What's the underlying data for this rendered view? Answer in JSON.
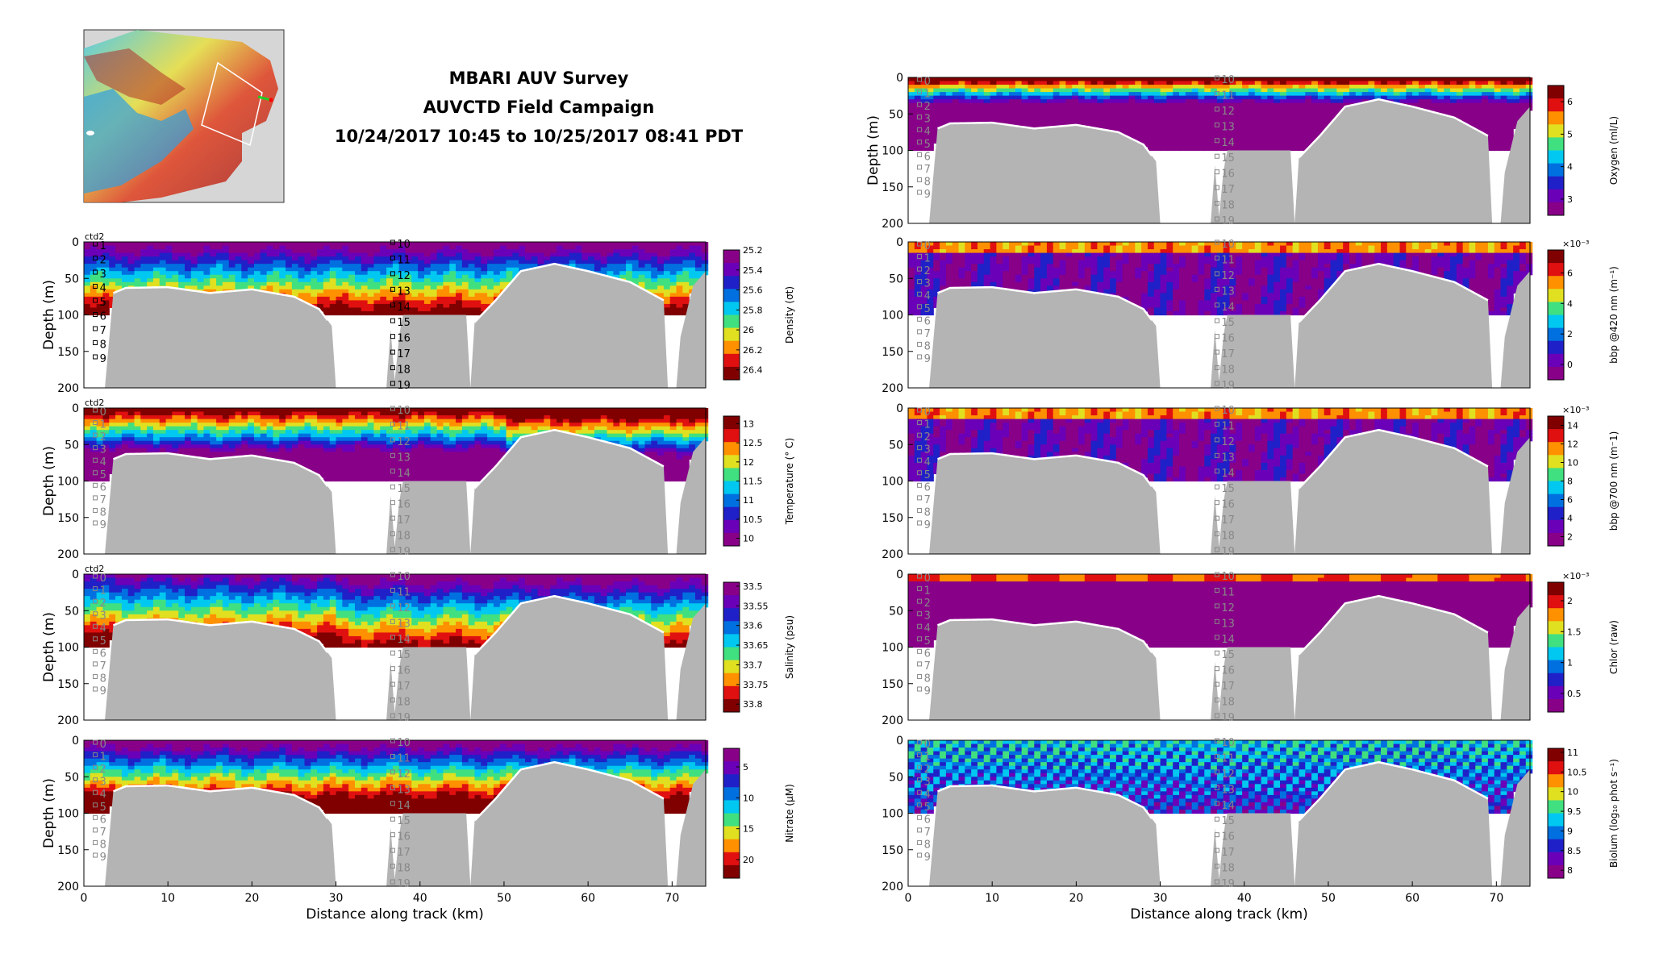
{
  "title": {
    "line1": "MBARI AUV Survey",
    "line2": "AUVCTD Field Campaign",
    "line3": "10/24/2017 10:45 to 10/25/2017 08:41 PDT"
  },
  "ctd_label": "ctd2",
  "colors": {
    "terrain": "#b4b4b4",
    "background": "#ffffff",
    "colormap": [
      "#880088",
      "#6a00b8",
      "#2020c8",
      "#0070e0",
      "#00c8f0",
      "#40e080",
      "#e0e020",
      "#ff9000",
      "#e01010",
      "#800000"
    ]
  },
  "chart_data": [
    {
      "type": "heatmap",
      "id": "density",
      "column": "left",
      "xlabel": "",
      "ylabel": "Depth (m)",
      "xlim": [
        0,
        74
      ],
      "ylim": [
        200,
        0
      ],
      "xticks": [],
      "yticks": [
        0,
        50,
        100,
        150,
        200
      ],
      "colorbar": {
        "label": "Density (σt)",
        "ticks": [
          "25.2",
          "25.4",
          "25.6",
          "25.8",
          "26",
          "26.2",
          "26.4"
        ],
        "range": [
          25.2,
          26.5
        ],
        "reversed": true,
        "exponent": ""
      },
      "stations_left": [
        "1",
        "2",
        "3",
        "4",
        "5",
        "6",
        "7",
        "8",
        "9"
      ],
      "stations_mid": [
        "10",
        "11",
        "12",
        "13",
        "14",
        "15",
        "16",
        "17",
        "18",
        "19"
      ],
      "station_style": "black",
      "show_ctd": true
    },
    {
      "type": "heatmap",
      "id": "temperature",
      "column": "left",
      "xlabel": "",
      "ylabel": "Depth (m)",
      "xlim": [
        0,
        74
      ],
      "ylim": [
        200,
        0
      ],
      "xticks": [],
      "yticks": [
        0,
        50,
        100,
        150,
        200
      ],
      "colorbar": {
        "label": "Temperature (° C)",
        "ticks": [
          "10",
          "10.5",
          "11",
          "11.5",
          "12",
          "12.5",
          "13"
        ],
        "range": [
          9.8,
          13.2
        ],
        "reversed": false,
        "exponent": ""
      },
      "stations_left": [
        "0",
        "1",
        "2",
        "3",
        "4",
        "5",
        "6",
        "7",
        "8",
        "9"
      ],
      "stations_mid": [
        "10",
        "11",
        "12",
        "13",
        "14",
        "15",
        "16",
        "17",
        "18",
        "19"
      ],
      "station_style": "gray",
      "show_ctd": true
    },
    {
      "type": "heatmap",
      "id": "salinity",
      "column": "left",
      "xlabel": "",
      "ylabel": "Depth (m)",
      "xlim": [
        0,
        74
      ],
      "ylim": [
        200,
        0
      ],
      "xticks": [],
      "yticks": [
        0,
        50,
        100,
        150,
        200
      ],
      "colorbar": {
        "label": "Salinity (psu)",
        "ticks": [
          "33.5",
          "33.55",
          "33.6",
          "33.65",
          "33.7",
          "33.75",
          "33.8"
        ],
        "range": [
          33.49,
          33.82
        ],
        "reversed": true,
        "exponent": ""
      },
      "stations_left": [
        "0",
        "1",
        "2",
        "3",
        "4",
        "5",
        "6",
        "7",
        "8",
        "9"
      ],
      "stations_mid": [
        "10",
        "11",
        "12",
        "13",
        "14",
        "15",
        "16",
        "17",
        "18",
        "19"
      ],
      "station_style": "gray",
      "show_ctd": true
    },
    {
      "type": "heatmap",
      "id": "nitrate",
      "column": "left",
      "xlabel": "Distance along track (km)",
      "ylabel": "Depth (m)",
      "xlim": [
        0,
        74
      ],
      "ylim": [
        200,
        0
      ],
      "xticks": [
        0,
        10,
        20,
        30,
        40,
        50,
        60,
        70
      ],
      "yticks": [
        0,
        50,
        100,
        150,
        200
      ],
      "colorbar": {
        "label": "Nitrate (μM)",
        "ticks": [
          "5",
          "10",
          "15",
          "20"
        ],
        "range": [
          2,
          23
        ],
        "reversed": true,
        "exponent": ""
      },
      "stations_left": [
        "0",
        "1",
        "2",
        "3",
        "4",
        "5",
        "6",
        "7",
        "8",
        "9"
      ],
      "stations_mid": [
        "10",
        "11",
        "12",
        "13",
        "14",
        "15",
        "16",
        "17",
        "18",
        "19"
      ],
      "station_style": "gray",
      "show_ctd": false
    },
    {
      "type": "heatmap",
      "id": "oxygen",
      "column": "right",
      "xlabel": "",
      "ylabel": "Depth (m)",
      "xlim": [
        0,
        74
      ],
      "ylim": [
        200,
        0
      ],
      "xticks": [],
      "yticks": [
        0,
        50,
        100,
        150,
        200
      ],
      "colorbar": {
        "label": "Oxygen (ml/L)",
        "ticks": [
          "3",
          "4",
          "5",
          "6"
        ],
        "range": [
          2.5,
          6.5
        ],
        "reversed": false,
        "exponent": ""
      },
      "stations_left": [
        "0",
        "1",
        "2",
        "3",
        "4",
        "5",
        "6",
        "7",
        "8",
        "9"
      ],
      "stations_mid": [
        "10",
        "11",
        "12",
        "13",
        "14",
        "15",
        "16",
        "17",
        "18",
        "19"
      ],
      "station_style": "gray",
      "show_ctd": false
    },
    {
      "type": "heatmap",
      "id": "bbp420",
      "column": "right",
      "xlabel": "",
      "ylabel": "",
      "xlim": [
        0,
        74
      ],
      "ylim": [
        200,
        0
      ],
      "xticks": [],
      "yticks": [
        0,
        50,
        100,
        150,
        200
      ],
      "colorbar": {
        "label": "bbp @420 nm (m⁻¹)",
        "ticks": [
          "0",
          "2",
          "4",
          "6"
        ],
        "range": [
          -1,
          7.5
        ],
        "reversed": false,
        "exponent": "×10⁻³"
      },
      "stations_left": [
        "0",
        "1",
        "2",
        "3",
        "4",
        "5",
        "6",
        "7",
        "8",
        "9"
      ],
      "stations_mid": [
        "10",
        "11",
        "12",
        "13",
        "14",
        "15",
        "16",
        "17",
        "18",
        "19"
      ],
      "station_style": "gray",
      "show_ctd": false
    },
    {
      "type": "heatmap",
      "id": "bbp700",
      "column": "right",
      "xlabel": "",
      "ylabel": "",
      "xlim": [
        0,
        74
      ],
      "ylim": [
        200,
        0
      ],
      "xticks": [],
      "yticks": [
        0,
        50,
        100,
        150,
        200
      ],
      "colorbar": {
        "label": "bbp @700 nm (m⁻1)",
        "ticks": [
          "2",
          "4",
          "6",
          "8",
          "10",
          "12",
          "14"
        ],
        "range": [
          1,
          15
        ],
        "reversed": false,
        "exponent": "×10⁻³"
      },
      "stations_left": [
        "0",
        "1",
        "2",
        "3",
        "4",
        "5",
        "6",
        "7",
        "8",
        "9"
      ],
      "stations_mid": [
        "10",
        "11",
        "12",
        "13",
        "14",
        "15",
        "16",
        "17",
        "18",
        "19"
      ],
      "station_style": "gray",
      "show_ctd": false
    },
    {
      "type": "heatmap",
      "id": "chlor",
      "column": "right",
      "xlabel": "",
      "ylabel": "",
      "xlim": [
        0,
        74
      ],
      "ylim": [
        200,
        0
      ],
      "xticks": [],
      "yticks": [
        0,
        50,
        100,
        150,
        200
      ],
      "colorbar": {
        "label": "Chlor (raw)",
        "ticks": [
          "0.5",
          "1",
          "1.5",
          "2"
        ],
        "range": [
          0.2,
          2.3
        ],
        "reversed": false,
        "exponent": "×10⁻³"
      },
      "stations_left": [
        "0",
        "1",
        "2",
        "3",
        "4",
        "5",
        "6",
        "7",
        "8",
        "9"
      ],
      "stations_mid": [
        "10",
        "11",
        "12",
        "13",
        "14",
        "15",
        "16",
        "17",
        "18",
        "19"
      ],
      "station_style": "gray",
      "show_ctd": false
    },
    {
      "type": "heatmap",
      "id": "biolum",
      "column": "right",
      "xlabel": "Distance along track (km)",
      "ylabel": "",
      "xlim": [
        0,
        74
      ],
      "ylim": [
        200,
        0
      ],
      "xticks": [
        0,
        10,
        20,
        30,
        40,
        50,
        60,
        70
      ],
      "yticks": [
        0,
        50,
        100,
        150,
        200
      ],
      "colorbar": {
        "label": "Biolum (log₁₀ phot s⁻¹)",
        "ticks": [
          "8",
          "8.5",
          "9",
          "9.5",
          "10",
          "10.5",
          "11"
        ],
        "range": [
          7.8,
          11.1
        ],
        "reversed": false,
        "exponent": ""
      },
      "stations_left": [
        "0",
        "1",
        "2",
        "3",
        "4",
        "5",
        "6",
        "7",
        "8",
        "9"
      ],
      "stations_mid": [
        "10",
        "11",
        "12",
        "13",
        "14",
        "15",
        "16",
        "17",
        "18",
        "19"
      ],
      "station_style": "gray",
      "show_ctd": false
    }
  ]
}
